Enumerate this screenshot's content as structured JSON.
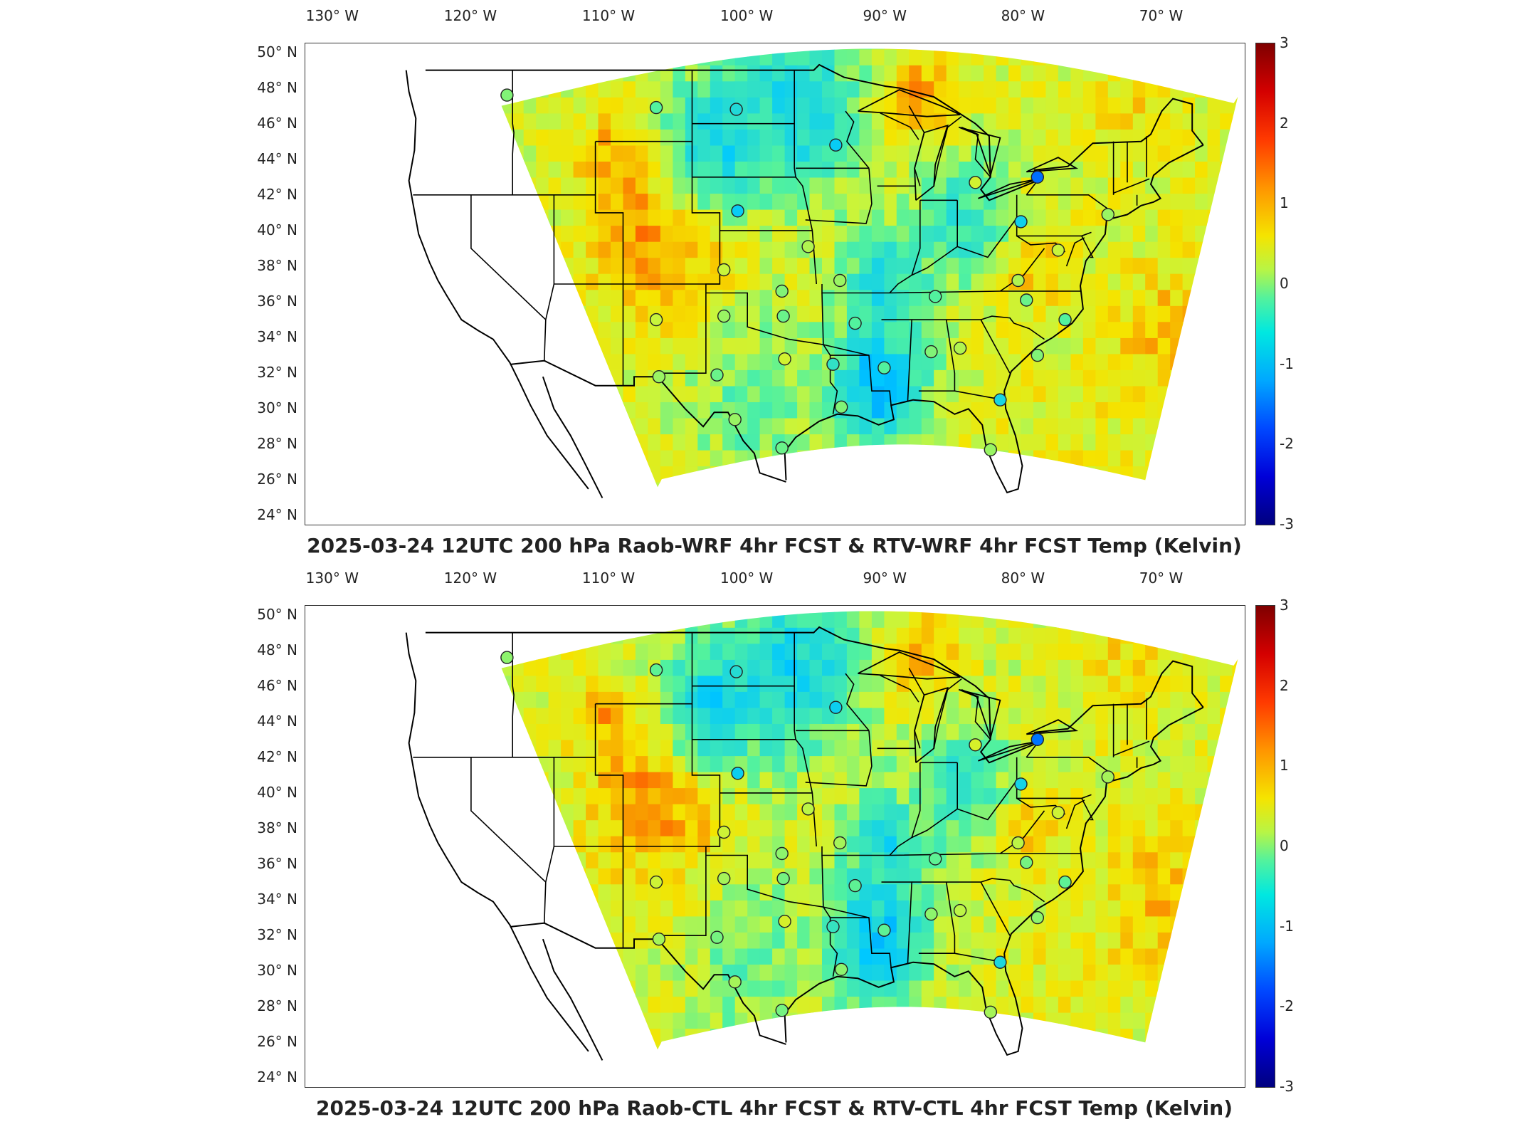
{
  "panels": [
    {
      "title": "2025-03-24 12UTC 200 hPa Raob-WRF 4hr FCST & RTV-WRF 4hr FCST Temp (Kelvin)"
    },
    {
      "title": "2025-03-24 12UTC 200 hPa Raob-CTL 4hr FCST & RTV-CTL 4hr FCST Temp (Kelvin)"
    }
  ],
  "lon_ticks": [
    "130° W",
    "120° W",
    "110° W",
    "100° W",
    "90° W",
    "80° W",
    "70° W"
  ],
  "lat_ticks": [
    "50° N",
    "48° N",
    "46° N",
    "44° N",
    "42° N",
    "40° N",
    "38° N",
    "36° N",
    "34° N",
    "32° N",
    "30° N",
    "28° N",
    "26° N",
    "24° N"
  ],
  "colorbar": {
    "ticks": [
      "3",
      "2",
      "1",
      "0",
      "-1",
      "-2",
      "-3"
    ],
    "colors": [
      "#7f0000",
      "#ff3a00",
      "#f5e400",
      "#52f29e",
      "#00a8ff",
      "#0000d8",
      "#00007f"
    ]
  },
  "stations": [
    {
      "lon": -117.4,
      "lat": 47.6,
      "v": 0.2
    },
    {
      "lon": -106.6,
      "lat": 46.9,
      "v": 0.0
    },
    {
      "lon": -100.8,
      "lat": 46.8,
      "v": -0.6
    },
    {
      "lon": -93.6,
      "lat": 44.8,
      "v": -0.9
    },
    {
      "lon": -83.5,
      "lat": 42.7,
      "v": 0.6
    },
    {
      "lon": -79.0,
      "lat": 43.0,
      "v": -1.7
    },
    {
      "lon": -100.7,
      "lat": 41.1,
      "v": -0.9
    },
    {
      "lon": -80.2,
      "lat": 40.5,
      "v": -0.8
    },
    {
      "lon": -95.6,
      "lat": 39.1,
      "v": 0.4
    },
    {
      "lon": -101.7,
      "lat": 37.8,
      "v": 0.5
    },
    {
      "lon": -93.3,
      "lat": 37.2,
      "v": 0.3
    },
    {
      "lon": -97.5,
      "lat": 36.6,
      "v": 0.2
    },
    {
      "lon": -86.4,
      "lat": 36.3,
      "v": 0.0
    },
    {
      "lon": -80.4,
      "lat": 37.2,
      "v": 0.4
    },
    {
      "lon": -79.8,
      "lat": 36.1,
      "v": 0.1
    },
    {
      "lon": -106.6,
      "lat": 35.0,
      "v": 0.5
    },
    {
      "lon": -101.7,
      "lat": 35.2,
      "v": 0.3
    },
    {
      "lon": -97.4,
      "lat": 35.2,
      "v": 0.1
    },
    {
      "lon": -92.2,
      "lat": 34.8,
      "v": 0.0
    },
    {
      "lon": -97.3,
      "lat": 32.8,
      "v": 0.6
    },
    {
      "lon": -93.8,
      "lat": 32.5,
      "v": -0.4
    },
    {
      "lon": -90.1,
      "lat": 32.3,
      "v": 0.0
    },
    {
      "lon": -86.7,
      "lat": 33.2,
      "v": 0.2
    },
    {
      "lon": -84.6,
      "lat": 33.4,
      "v": 0.4
    },
    {
      "lon": -79.0,
      "lat": 33.0,
      "v": 0.2
    },
    {
      "lon": -106.4,
      "lat": 31.8,
      "v": 0.3
    },
    {
      "lon": -102.2,
      "lat": 31.9,
      "v": 0.1
    },
    {
      "lon": -93.2,
      "lat": 30.1,
      "v": 0.2
    },
    {
      "lon": -81.7,
      "lat": 30.5,
      "v": -0.7
    },
    {
      "lon": -100.9,
      "lat": 29.4,
      "v": 0.3
    },
    {
      "lon": -97.5,
      "lat": 27.8,
      "v": 0.1
    },
    {
      "lon": -82.4,
      "lat": 27.7,
      "v": 0.3
    },
    {
      "lon": -77.0,
      "lat": 35.0,
      "v": 0.0
    },
    {
      "lon": -77.5,
      "lat": 38.9,
      "v": 0.5
    },
    {
      "lon": -73.9,
      "lat": 40.9,
      "v": 0.3
    }
  ]
}
